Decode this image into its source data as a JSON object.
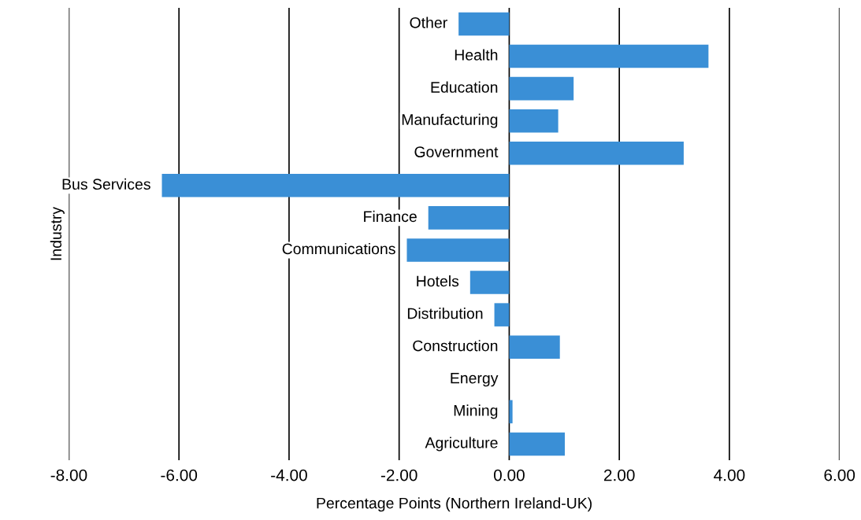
{
  "chart_data": {
    "type": "bar",
    "orientation": "horizontal",
    "xlabel": "Percentage Points (Northern Ireland-UK)",
    "ylabel": "Industry",
    "categories": [
      "Other",
      "Health",
      "Education",
      "Manufacturing",
      "Government",
      "Bus Services",
      "Finance",
      "Communications",
      "Hotels",
      "Distribution",
      "Construction",
      "Energy",
      "Mining",
      "Agriculture"
    ],
    "values": [
      -0.92,
      3.62,
      1.17,
      0.89,
      3.17,
      -6.31,
      -1.47,
      -1.86,
      -0.71,
      -0.27,
      0.92,
      0.0,
      0.06,
      1.01
    ],
    "color": "#3a8fd6",
    "xlim": [
      -8,
      6
    ],
    "xticks": [
      {
        "value": -8,
        "label": "-8.00"
      },
      {
        "value": -6,
        "label": "-6.00"
      },
      {
        "value": -4,
        "label": "-4.00"
      },
      {
        "value": -2,
        "label": "-2.00"
      },
      {
        "value": 0,
        "label": "0.00"
      },
      {
        "value": 2,
        "label": "2.00"
      },
      {
        "value": 4,
        "label": "4.00"
      },
      {
        "value": 6,
        "label": "6.00"
      }
    ],
    "grid": "x"
  }
}
